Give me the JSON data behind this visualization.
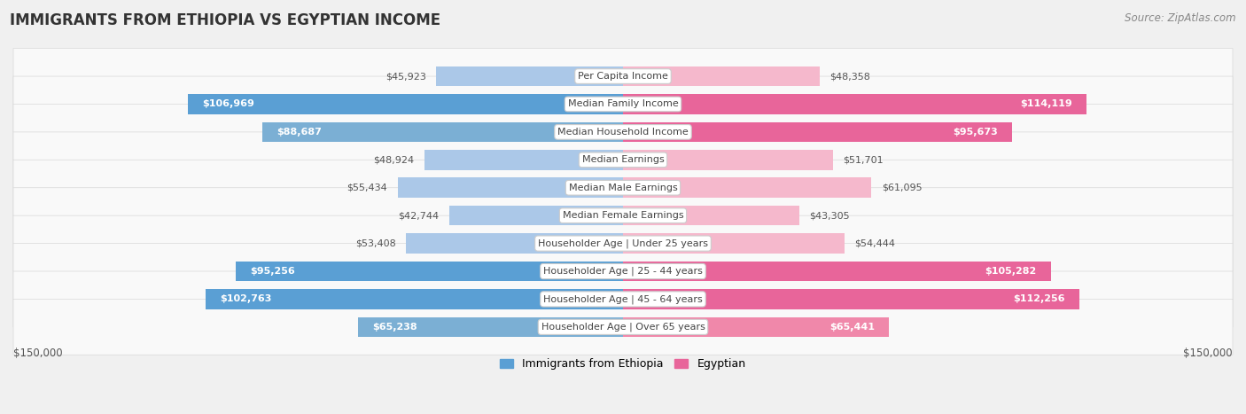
{
  "title": "IMMIGRANTS FROM ETHIOPIA VS EGYPTIAN INCOME",
  "source": "Source: ZipAtlas.com",
  "categories": [
    "Per Capita Income",
    "Median Family Income",
    "Median Household Income",
    "Median Earnings",
    "Median Male Earnings",
    "Median Female Earnings",
    "Householder Age | Under 25 years",
    "Householder Age | 25 - 44 years",
    "Householder Age | 45 - 64 years",
    "Householder Age | Over 65 years"
  ],
  "ethiopia_values": [
    45923,
    106969,
    88687,
    48924,
    55434,
    42744,
    53408,
    95256,
    102763,
    65238
  ],
  "egyptian_values": [
    48358,
    114119,
    95673,
    51701,
    61095,
    43305,
    54444,
    105282,
    112256,
    65441
  ],
  "ethiopia_labels": [
    "$45,923",
    "$106,969",
    "$88,687",
    "$48,924",
    "$55,434",
    "$42,744",
    "$53,408",
    "$95,256",
    "$102,763",
    "$65,238"
  ],
  "egyptian_labels": [
    "$48,358",
    "$114,119",
    "$95,673",
    "$51,701",
    "$61,095",
    "$43,305",
    "$54,444",
    "$105,282",
    "$112,256",
    "$65,441"
  ],
  "max_value": 150000,
  "ethiopia_bar_color_light": "#abc8e8",
  "ethiopia_bar_color_medium": "#7bafd4",
  "ethiopia_bar_color_dark": "#5a9fd4",
  "egyptian_bar_color_light": "#f5b8cc",
  "egyptian_bar_color_medium": "#f088aa",
  "egyptian_bar_color_dark": "#e8659a",
  "bg_color": "#f0f0f0",
  "row_bg_even": "#f9f9f9",
  "row_bg_odd": "#f0f0f0",
  "axis_label_left": "$150,000",
  "axis_label_right": "$150,000",
  "legend_ethiopia": "Immigrants from Ethiopia",
  "legend_egyptian": "Egyptian",
  "title_fontsize": 12,
  "source_fontsize": 8.5,
  "bar_label_fontsize": 8,
  "category_fontsize": 8,
  "dark_threshold_eth": 90000,
  "medium_threshold_eth": 65000,
  "dark_threshold_egy": 95000,
  "medium_threshold_egy": 65000
}
